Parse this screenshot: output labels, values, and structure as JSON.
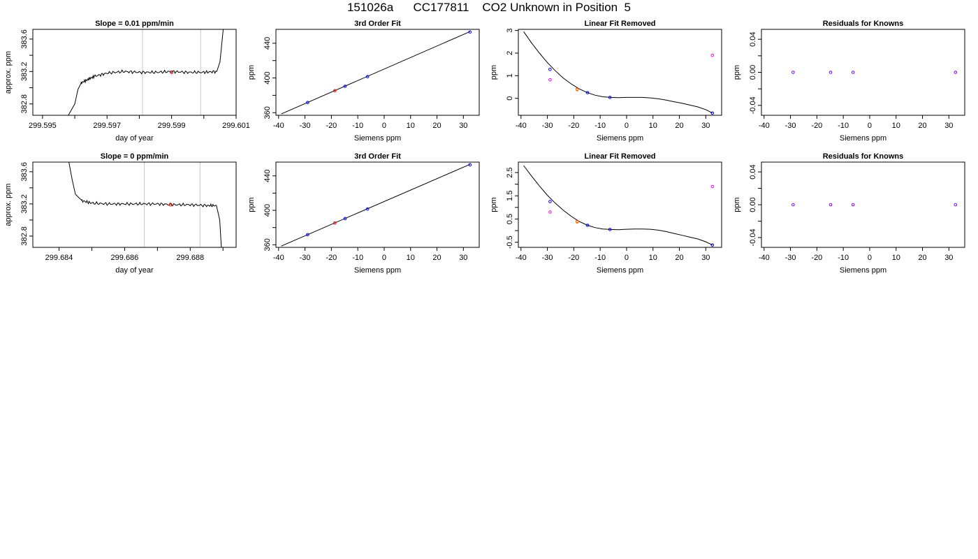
{
  "page": {
    "title": "151026a      CC177811    CO2 Unknown in Position  5"
  },
  "chart_data": [
    {
      "type": "line",
      "title": "Slope =  0.01  ppm/min",
      "xlabel": "day of year",
      "ylabel": "approx. ppm",
      "xlim": [
        299.5947,
        299.601
      ],
      "ylim": [
        382.66,
        383.72
      ],
      "xticks": [
        299.595,
        299.596,
        299.597,
        299.598,
        299.599,
        299.6,
        299.601
      ],
      "xtick_labels": [
        "299.595",
        "",
        "299.597",
        "",
        "299.599",
        "",
        "299.601"
      ],
      "yticks": [
        382.8,
        383.0,
        383.2,
        383.4,
        383.6
      ],
      "ytick_labels": [
        "382.8",
        "",
        "383.2",
        "",
        "383.6"
      ],
      "vlines": [
        299.5981,
        299.5999
      ],
      "line_color": "#000000",
      "vline_color": "#c8c8c8",
      "trace": {
        "x": [
          299.5958,
          299.596,
          299.5961,
          299.5962,
          299.5964,
          299.5966,
          299.597,
          299.5975,
          299.598,
          299.5985,
          299.599,
          299.5995,
          299.6,
          299.6004,
          299.6005,
          299.6006
        ],
        "y": [
          382.66,
          382.8,
          382.98,
          383.06,
          383.1,
          383.14,
          383.18,
          383.2,
          383.19,
          383.19,
          383.2,
          383.19,
          383.19,
          383.2,
          383.32,
          383.72
        ]
      },
      "markers": [
        {
          "x": 299.599,
          "y": 383.19,
          "color": "#ff0000"
        }
      ]
    },
    {
      "type": "scatter",
      "title": "3rd Order Fit",
      "xlabel": "Siemens ppm",
      "ylabel": "ppm",
      "xlim": [
        -41,
        36
      ],
      "ylim": [
        357,
        456
      ],
      "xticks": [
        -40,
        -30,
        -20,
        -10,
        0,
        10,
        20,
        30
      ],
      "xtick_labels": [
        "-40",
        "-30",
        "-20",
        "-10",
        "0",
        "10",
        "20",
        "30"
      ],
      "yticks": [
        360,
        380,
        400,
        420,
        440
      ],
      "ytick_labels": [
        "360",
        "",
        "400",
        "",
        "440"
      ],
      "curve": {
        "x": [
          -39,
          32.5
        ],
        "y": [
          358.5,
          453.4
        ]
      },
      "points": [
        {
          "x": -29.0,
          "y": 371.7,
          "color": "#0000ff"
        },
        {
          "x": -18.7,
          "y": 385.3,
          "color": "#ff0000"
        },
        {
          "x": -14.8,
          "y": 390.4,
          "color": "#0000ff"
        },
        {
          "x": -6.3,
          "y": 401.5,
          "color": "#0000ff"
        },
        {
          "x": 32.5,
          "y": 452.9,
          "color": "#0000ff"
        }
      ]
    },
    {
      "type": "scatter",
      "title": "Linear Fit Removed",
      "xlabel": "Siemens ppm",
      "ylabel": "ppm",
      "xlim": [
        -41,
        36
      ],
      "ylim": [
        -0.75,
        3.05
      ],
      "xticks": [
        -40,
        -30,
        -20,
        -10,
        0,
        10,
        20,
        30
      ],
      "xtick_labels": [
        "-40",
        "-30",
        "-20",
        "-10",
        "0",
        "10",
        "20",
        "30"
      ],
      "yticks": [
        0,
        1,
        2,
        3
      ],
      "ytick_labels": [
        "0",
        "1",
        "2",
        "3"
      ],
      "curve": {
        "x": [
          -39,
          -36,
          -33,
          -30,
          -27,
          -24,
          -21,
          -18,
          -15,
          -12,
          -9,
          -6,
          -3,
          0,
          3,
          6,
          9,
          12,
          15,
          18,
          21,
          24,
          27,
          30,
          32.5
        ],
        "y": [
          2.95,
          2.45,
          2.0,
          1.58,
          1.22,
          0.9,
          0.64,
          0.42,
          0.26,
          0.14,
          0.07,
          0.04,
          0.03,
          0.04,
          0.04,
          0.04,
          0.02,
          -0.02,
          -0.08,
          -0.15,
          -0.22,
          -0.3,
          -0.38,
          -0.5,
          -0.65
        ]
      },
      "points": [
        {
          "x": -29.0,
          "y": 1.28,
          "color": "#0000ff"
        },
        {
          "x": -29.0,
          "y": 0.82,
          "color": "#ff00ff"
        },
        {
          "x": -18.7,
          "y": 0.4,
          "color": "#ff0000"
        },
        {
          "x": -18.7,
          "y": 0.38,
          "color": "#ff8c00"
        },
        {
          "x": -14.8,
          "y": 0.25,
          "color": "#0000ff"
        },
        {
          "x": -6.3,
          "y": 0.04,
          "color": "#0000ff"
        },
        {
          "x": 32.5,
          "y": 1.9,
          "color": "#ff00ff"
        },
        {
          "x": 32.5,
          "y": -0.65,
          "color": "#0000ff"
        }
      ]
    },
    {
      "type": "scatter",
      "title": "Residuals for Knowns",
      "xlabel": "Siemens ppm",
      "ylabel": "ppm",
      "xlim": [
        -41,
        36
      ],
      "ylim": [
        -0.052,
        0.052
      ],
      "xticks": [
        -40,
        -30,
        -20,
        -10,
        0,
        10,
        20,
        30
      ],
      "xtick_labels": [
        "-40",
        "-30",
        "-20",
        "-10",
        "0",
        "10",
        "20",
        "30"
      ],
      "yticks": [
        -0.04,
        -0.02,
        0.0,
        0.02,
        0.04
      ],
      "ytick_labels": [
        "-0.04",
        "",
        "0.00",
        "",
        "0.04"
      ],
      "points": [
        {
          "x": -29.0,
          "y": 0.0,
          "color": "#8000ff"
        },
        {
          "x": -14.8,
          "y": 0.0,
          "color": "#8000ff"
        },
        {
          "x": -6.3,
          "y": 0.0,
          "color": "#8000ff"
        },
        {
          "x": 32.5,
          "y": 0.0,
          "color": "#8000ff"
        }
      ]
    },
    {
      "type": "line",
      "title": "Slope =  0  ppm/min",
      "xlabel": "day of year",
      "ylabel": "approx. ppm",
      "xlim": [
        299.6832,
        299.6894
      ],
      "ylim": [
        382.66,
        383.72
      ],
      "xticks": [
        299.684,
        299.685,
        299.686,
        299.687,
        299.688,
        299.689
      ],
      "xtick_labels": [
        "299.684",
        "",
        "299.686",
        "",
        "299.688",
        ""
      ],
      "yticks": [
        382.8,
        383.0,
        383.2,
        383.4,
        383.6
      ],
      "ytick_labels": [
        "382.8",
        "",
        "383.2",
        "",
        "383.6"
      ],
      "vlines": [
        299.6866,
        299.6883
      ],
      "line_color": "#000000",
      "vline_color": "#c8c8c8",
      "trace": {
        "x": [
          299.6843,
          299.6844,
          299.6845,
          299.6847,
          299.685,
          299.6855,
          299.686,
          299.6865,
          299.687,
          299.6875,
          299.688,
          299.6885,
          299.6888,
          299.6889,
          299.68895
        ],
        "y": [
          383.72,
          383.5,
          383.32,
          383.24,
          383.21,
          383.2,
          383.2,
          383.2,
          383.2,
          383.19,
          383.19,
          383.18,
          383.18,
          383.0,
          382.66
        ]
      },
      "markers": [
        {
          "x": 299.6874,
          "y": 383.19,
          "color": "#ff0000"
        }
      ]
    },
    {
      "type": "scatter",
      "title": "3rd Order Fit",
      "xlabel": "Siemens ppm",
      "ylabel": "ppm",
      "xlim": [
        -41,
        36
      ],
      "ylim": [
        357,
        456
      ],
      "xticks": [
        -40,
        -30,
        -20,
        -10,
        0,
        10,
        20,
        30
      ],
      "xtick_labels": [
        "-40",
        "-30",
        "-20",
        "-10",
        "0",
        "10",
        "20",
        "30"
      ],
      "yticks": [
        360,
        380,
        400,
        420,
        440
      ],
      "ytick_labels": [
        "360",
        "",
        "400",
        "",
        "440"
      ],
      "curve": {
        "x": [
          -39,
          32.5
        ],
        "y": [
          358.5,
          453.4
        ]
      },
      "points": [
        {
          "x": -29.0,
          "y": 371.7,
          "color": "#0000ff"
        },
        {
          "x": -18.7,
          "y": 385.3,
          "color": "#ff0000"
        },
        {
          "x": -14.8,
          "y": 390.4,
          "color": "#0000ff"
        },
        {
          "x": -6.3,
          "y": 401.5,
          "color": "#0000ff"
        },
        {
          "x": 32.5,
          "y": 452.9,
          "color": "#0000ff"
        }
      ]
    },
    {
      "type": "scatter",
      "title": "Linear Fit Removed",
      "xlabel": "Siemens ppm",
      "ylabel": "ppm",
      "xlim": [
        -41,
        36
      ],
      "ylim": [
        -0.72,
        2.95
      ],
      "xticks": [
        -40,
        -30,
        -20,
        -10,
        0,
        10,
        20,
        30
      ],
      "xtick_labels": [
        "-40",
        "-30",
        "-20",
        "-10",
        "0",
        "10",
        "20",
        "30"
      ],
      "yticks": [
        -0.5,
        0.0,
        0.5,
        1.0,
        1.5,
        2.0,
        2.5
      ],
      "ytick_labels": [
        "-0.5",
        "",
        "0.5",
        "",
        "1.5",
        "",
        "2.5"
      ],
      "curve": {
        "x": [
          -39,
          -36,
          -33,
          -30,
          -27,
          -24,
          -21,
          -18,
          -15,
          -12,
          -9,
          -6,
          -3,
          0,
          3,
          6,
          9,
          12,
          15,
          18,
          21,
          24,
          27,
          30,
          32.5
        ],
        "y": [
          2.8,
          2.35,
          1.92,
          1.52,
          1.18,
          0.88,
          0.62,
          0.4,
          0.24,
          0.13,
          0.07,
          0.05,
          0.04,
          0.06,
          0.07,
          0.07,
          0.06,
          0.02,
          -0.04,
          -0.12,
          -0.2,
          -0.28,
          -0.36,
          -0.48,
          -0.62
        ]
      },
      "points": [
        {
          "x": -29.0,
          "y": 1.25,
          "color": "#0000ff"
        },
        {
          "x": -29.0,
          "y": 0.8,
          "color": "#ff00ff"
        },
        {
          "x": -18.7,
          "y": 0.39,
          "color": "#ff0000"
        },
        {
          "x": -18.7,
          "y": 0.37,
          "color": "#ff8c00"
        },
        {
          "x": -14.8,
          "y": 0.23,
          "color": "#0000ff"
        },
        {
          "x": -6.3,
          "y": 0.05,
          "color": "#0000ff"
        },
        {
          "x": 32.5,
          "y": 1.9,
          "color": "#ff00ff"
        },
        {
          "x": 32.5,
          "y": -0.62,
          "color": "#0000ff"
        }
      ]
    },
    {
      "type": "scatter",
      "title": "Residuals for Knowns",
      "xlabel": "Siemens ppm",
      "ylabel": "ppm",
      "xlim": [
        -41,
        36
      ],
      "ylim": [
        -0.052,
        0.052
      ],
      "xticks": [
        -40,
        -30,
        -20,
        -10,
        0,
        10,
        20,
        30
      ],
      "xtick_labels": [
        "-40",
        "-30",
        "-20",
        "-10",
        "0",
        "10",
        "20",
        "30"
      ],
      "yticks": [
        -0.04,
        -0.02,
        0.0,
        0.02,
        0.04
      ],
      "ytick_labels": [
        "-0.04",
        "",
        "0.00",
        "",
        "0.04"
      ],
      "points": [
        {
          "x": -29.0,
          "y": 0.0,
          "color": "#8000ff"
        },
        {
          "x": -14.8,
          "y": 0.0,
          "color": "#8000ff"
        },
        {
          "x": -6.3,
          "y": 0.0,
          "color": "#8000ff"
        },
        {
          "x": 32.5,
          "y": 0.0,
          "color": "#8000ff"
        }
      ]
    }
  ]
}
